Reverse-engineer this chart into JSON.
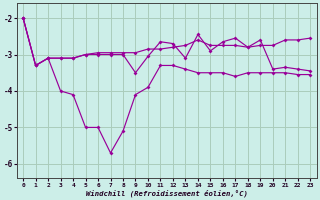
{
  "background_color": "#cceee8",
  "grid_color": "#aaccbb",
  "line_color": "#990099",
  "x": [
    0,
    1,
    2,
    3,
    4,
    5,
    6,
    7,
    8,
    9,
    10,
    11,
    12,
    13,
    14,
    15,
    16,
    17,
    18,
    19,
    20,
    21,
    22,
    23
  ],
  "line1": [
    -2.0,
    -3.3,
    -3.1,
    -4.0,
    -4.1,
    -5.0,
    -5.0,
    -5.7,
    -5.1,
    -4.1,
    -3.9,
    -3.3,
    -3.3,
    -3.4,
    -3.5,
    -3.5,
    -3.5,
    -3.6,
    -3.5,
    -3.5,
    -3.5,
    -3.5,
    -3.55,
    -3.55
  ],
  "line2": [
    -2.0,
    -3.3,
    -3.1,
    -3.1,
    -3.1,
    -3.0,
    -2.95,
    -2.95,
    -2.95,
    -2.95,
    -2.85,
    -2.85,
    -2.8,
    -2.75,
    -2.6,
    -2.75,
    -2.75,
    -2.75,
    -2.8,
    -2.75,
    -2.75,
    -2.6,
    -2.6,
    -2.55
  ],
  "line3": [
    -2.0,
    -3.3,
    -3.1,
    -3.1,
    -3.1,
    -3.0,
    -3.0,
    -3.0,
    -3.0,
    -3.5,
    -3.05,
    -2.65,
    -2.7,
    -3.1,
    -2.45,
    -2.9,
    -2.65,
    -2.55,
    -2.8,
    -2.6,
    -3.4,
    -3.35,
    -3.4,
    -3.45
  ],
  "ylim": [
    -6.4,
    -1.6
  ],
  "xlim": [
    -0.5,
    23.5
  ],
  "yticks": [
    -6,
    -5,
    -4,
    -3,
    -2
  ],
  "xticks": [
    0,
    1,
    2,
    3,
    4,
    5,
    6,
    7,
    8,
    9,
    10,
    11,
    12,
    13,
    14,
    15,
    16,
    17,
    18,
    19,
    20,
    21,
    22,
    23
  ],
  "xlabel": "Windchill (Refroidissement éolien,°C)"
}
